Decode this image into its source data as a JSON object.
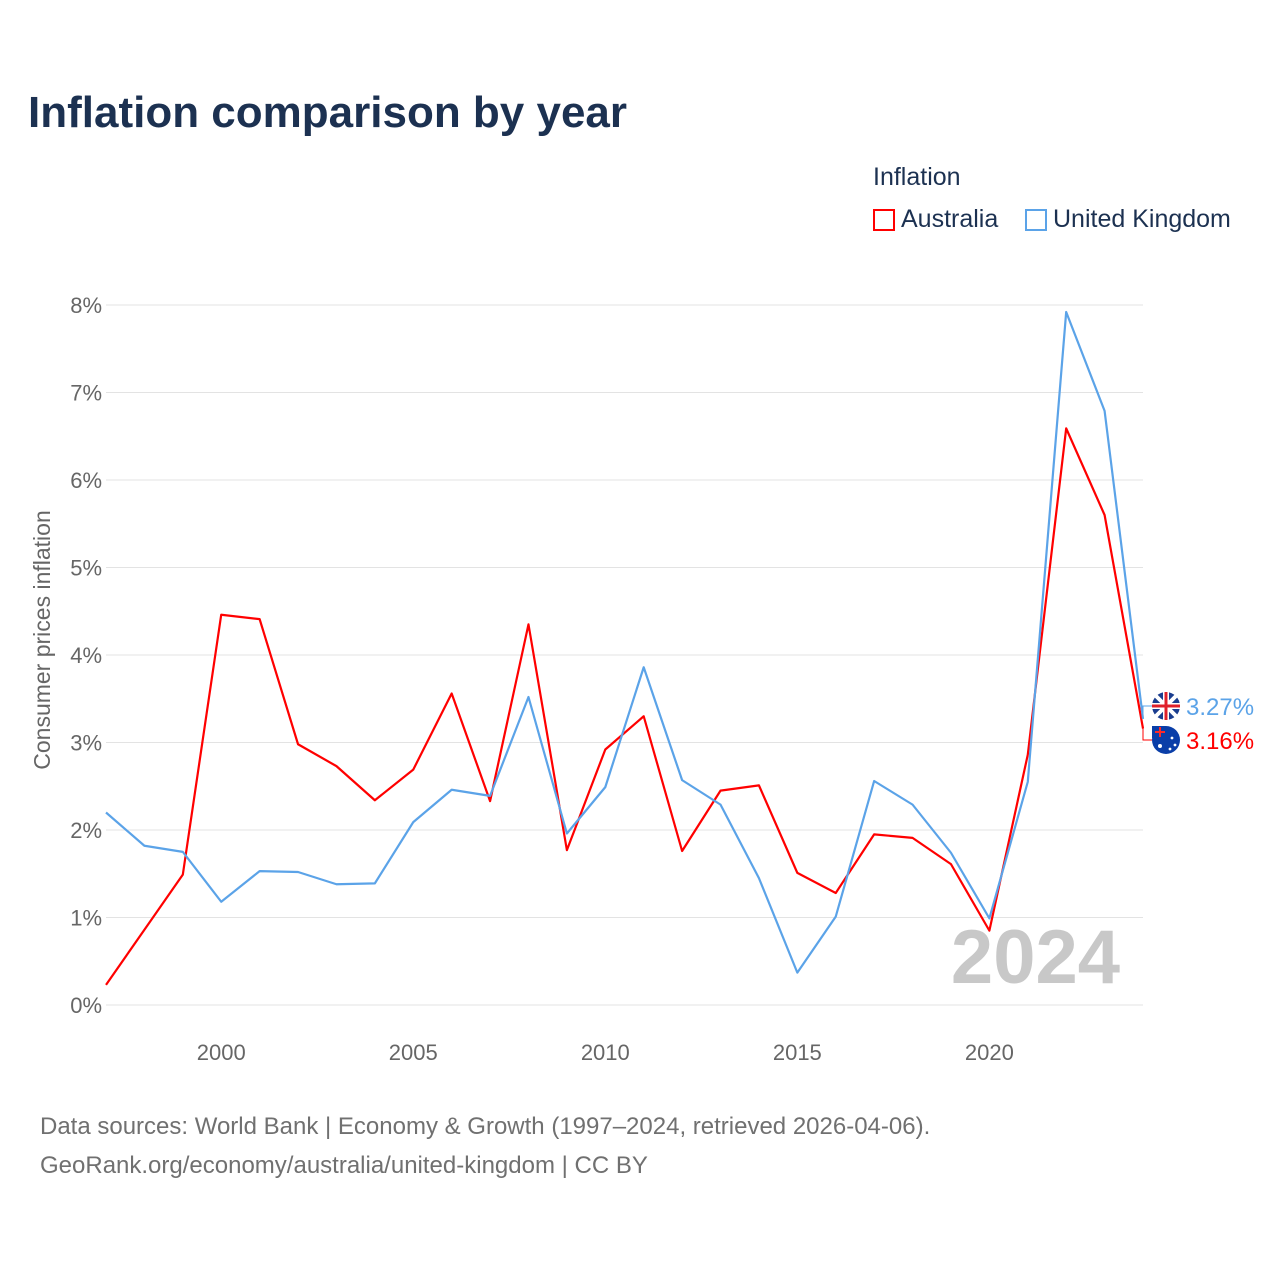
{
  "title": "Inflation comparison by year",
  "legend": {
    "title": "Inflation",
    "items": [
      {
        "label": "Australia",
        "color": "#ff0000"
      },
      {
        "label": "United Kingdom",
        "color": "#5ba3e8"
      }
    ]
  },
  "footer": {
    "line1": "Data sources: World Bank | Economy & Growth (1997–2024, retrieved 2026-04-06).",
    "line2": "GeoRank.org/economy/australia/united-kingdom | CC BY"
  },
  "year_watermark": "2024",
  "chart_data": {
    "type": "line",
    "title": "Inflation comparison by year",
    "xlabel": "",
    "ylabel": "Consumer prices inflation",
    "xlim": [
      1997,
      2024
    ],
    "ylim": [
      0,
      8
    ],
    "xticks": [
      2000,
      2005,
      2010,
      2015,
      2020
    ],
    "xtick_labels": [
      "2000",
      "2005",
      "2010",
      "2015",
      "2020"
    ],
    "yticks": [
      0,
      1,
      2,
      3,
      4,
      5,
      6,
      7,
      8
    ],
    "ytick_labels": [
      "0%",
      "1%",
      "2%",
      "3%",
      "4%",
      "5%",
      "6%",
      "7%",
      "8%"
    ],
    "grid": true,
    "legend_position": "top-right",
    "x": [
      1997,
      1998,
      1999,
      2000,
      2001,
      2002,
      2003,
      2004,
      2005,
      2006,
      2007,
      2008,
      2009,
      2010,
      2011,
      2012,
      2013,
      2014,
      2015,
      2016,
      2017,
      2018,
      2019,
      2020,
      2021,
      2022,
      2023,
      2024
    ],
    "series": [
      {
        "name": "Australia",
        "color": "#ff0000",
        "end_label": "3.16%",
        "values": [
          0.23,
          0.86,
          1.49,
          4.46,
          4.41,
          2.98,
          2.73,
          2.34,
          2.69,
          3.56,
          2.33,
          4.35,
          1.77,
          2.92,
          3.3,
          1.76,
          2.45,
          2.51,
          1.51,
          1.28,
          1.95,
          1.91,
          1.61,
          0.85,
          2.86,
          6.59,
          5.6,
          3.16
        ]
      },
      {
        "name": "United Kingdom",
        "color": "#5ba3e8",
        "end_label": "3.27%",
        "values": [
          2.2,
          1.82,
          1.75,
          1.18,
          1.53,
          1.52,
          1.38,
          1.39,
          2.09,
          2.46,
          2.39,
          3.52,
          1.96,
          2.49,
          3.86,
          2.57,
          2.29,
          1.45,
          0.37,
          1.01,
          2.56,
          2.29,
          1.74,
          0.99,
          2.55,
          7.92,
          6.79,
          3.27
        ]
      }
    ]
  }
}
